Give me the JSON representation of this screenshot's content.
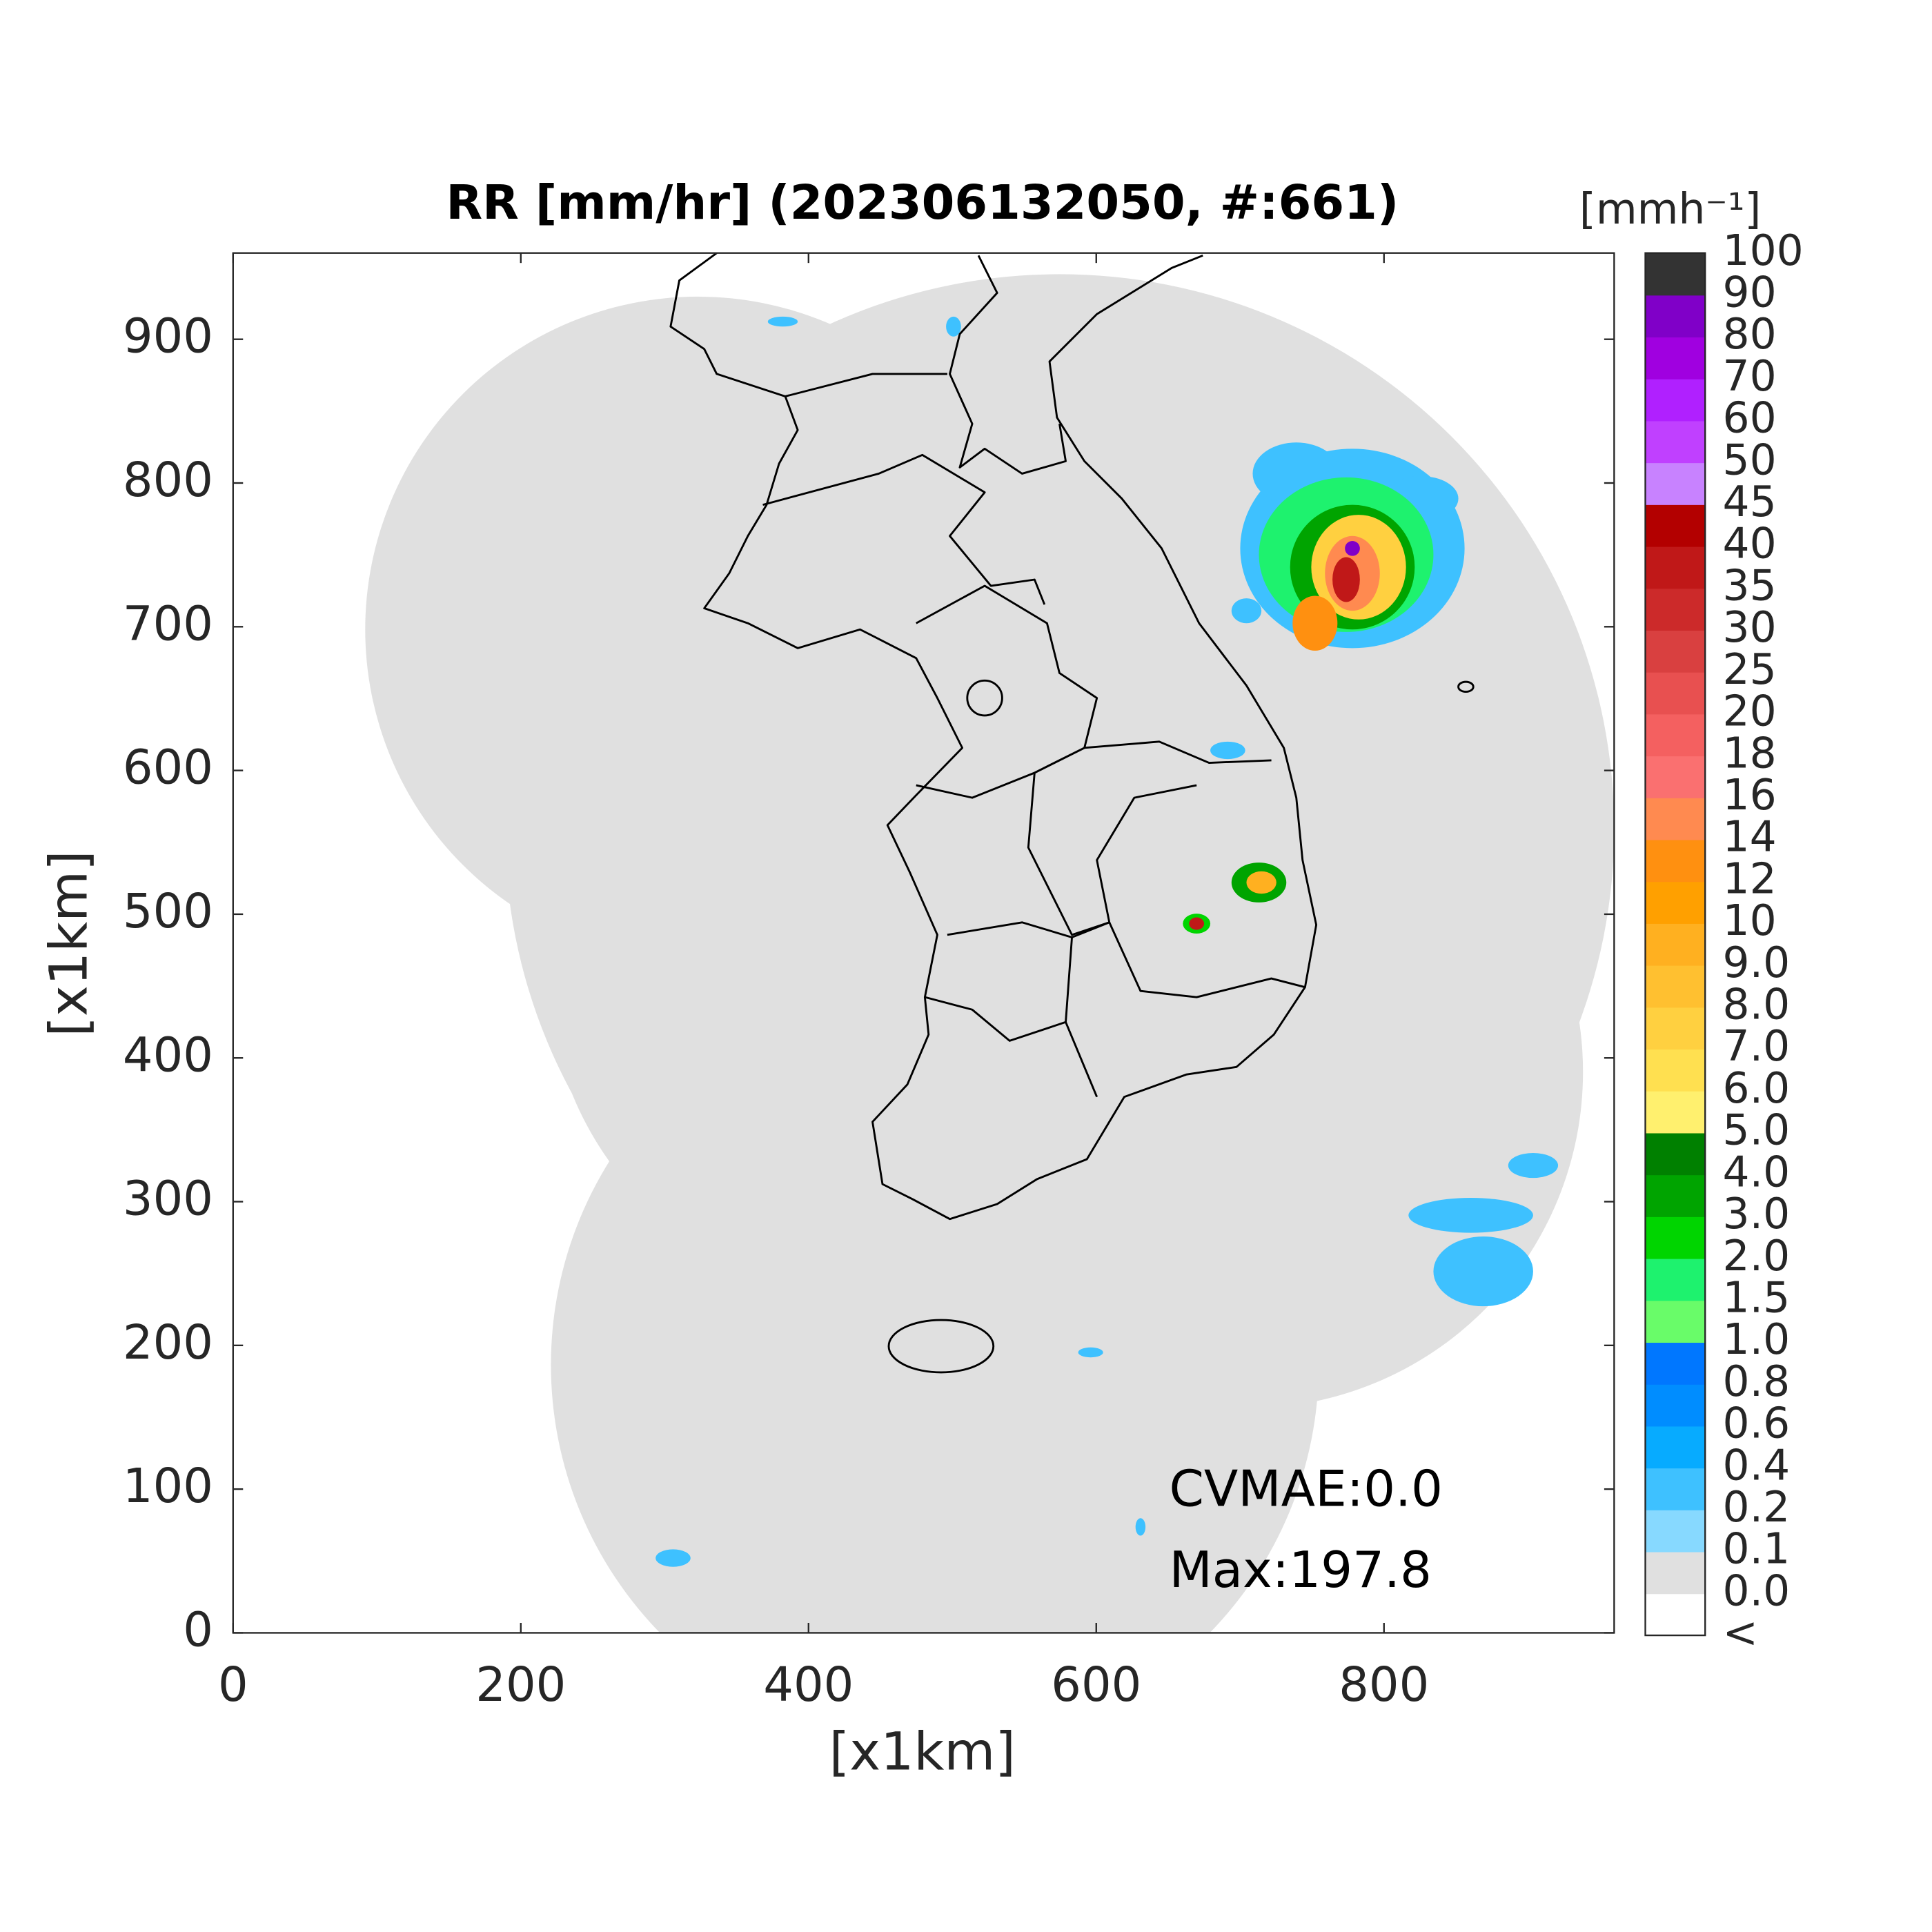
{
  "chart_data": {
    "type": "map",
    "title": "RR [mm/hr] (202306132050, #:661)",
    "x_label": "[x1km]",
    "y_label": "[x1km]",
    "xlim": [
      0,
      960
    ],
    "ylim": [
      0,
      960
    ],
    "xticks": [
      0,
      200,
      400,
      600,
      800
    ],
    "yticks": [
      0,
      100,
      200,
      300,
      400,
      500,
      600,
      700,
      800,
      900
    ],
    "annotations": [
      "CVMAE:0.0",
      "Max:197.8"
    ],
    "colorbar": {
      "label": "[mmh⁻¹]",
      "levels": [
        "<",
        "0.0",
        "0.1",
        "0.2",
        "0.4",
        "0.6",
        "0.8",
        "1.0",
        "1.5",
        "2.0",
        "3.0",
        "4.0",
        "5.0",
        "6.0",
        "7.0",
        "8.0",
        "9.0",
        "10",
        "12",
        "14",
        "16",
        "18",
        "20",
        "25",
        "30",
        "35",
        "40",
        "45",
        "50",
        "60",
        "70",
        "80",
        "90",
        "100"
      ],
      "colors": [
        "#ffffff",
        "#e0e0e0",
        "#87d9ff",
        "#3ec1ff",
        "#07abff",
        "#008dff",
        "#0077ff",
        "#69fc69",
        "#1ef26e",
        "#00d500",
        "#00a400",
        "#008000",
        "#fff06e",
        "#ffe050",
        "#ffd040",
        "#ffc030",
        "#ffb020",
        "#ffa000",
        "#ff9010",
        "#ff8a50",
        "#fa7070",
        "#f46060",
        "#e85050",
        "#d94040",
        "#cc2a2a",
        "#c01818",
        "#b30000",
        "#c882ff",
        "#c040ff",
        "#b020ff",
        "#a000e0",
        "#8000c8",
        "#333333"
      ]
    }
  }
}
